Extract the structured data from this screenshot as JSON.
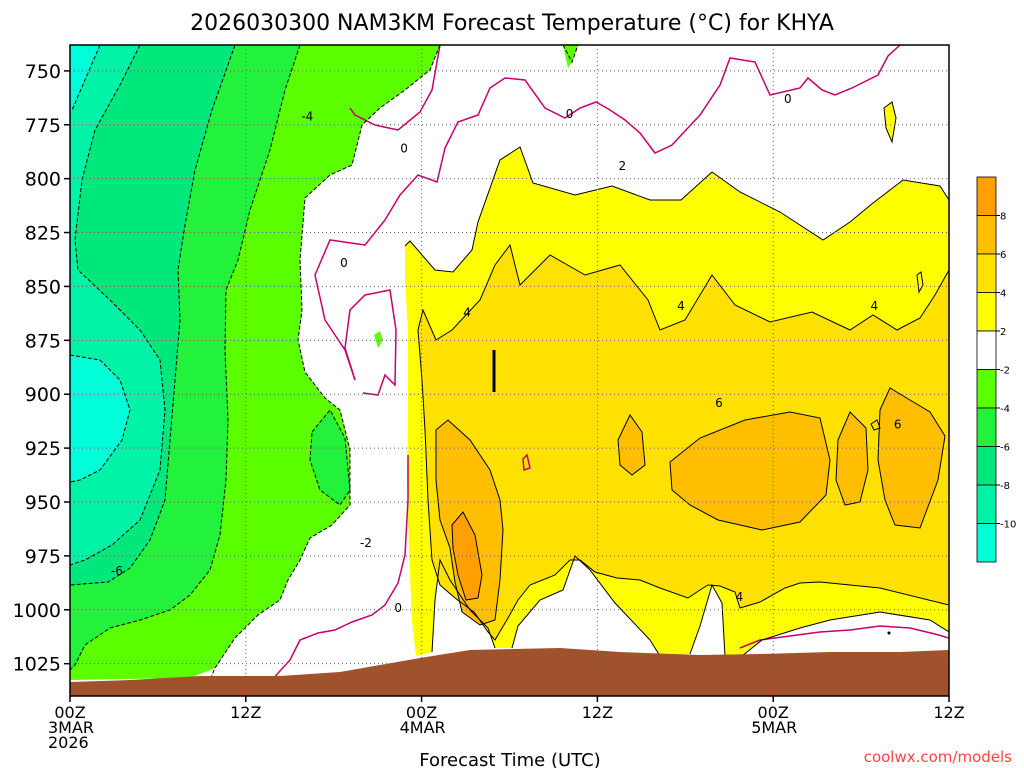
{
  "chart_data": {
    "type": "heatmap",
    "title": "2026030300 NAM3KM Forecast Temperature (°C) for KHYA",
    "xlabel": "Forecast Time (UTC)",
    "ylabel": "",
    "x_range_hours": [
      0,
      60
    ],
    "y_range_hpa": [
      1040,
      738
    ],
    "y_axis": "pressure, inverted (surface at bottom)",
    "grid": "dotted",
    "x_ticks": [
      {
        "hour": 0,
        "lines": [
          "00Z",
          "3MAR",
          "2026"
        ]
      },
      {
        "hour": 12,
        "lines": [
          "12Z"
        ]
      },
      {
        "hour": 24,
        "lines": [
          "00Z",
          "4MAR"
        ]
      },
      {
        "hour": 36,
        "lines": [
          "12Z"
        ]
      },
      {
        "hour": 48,
        "lines": [
          "00Z",
          "5MAR"
        ]
      },
      {
        "hour": 60,
        "lines": [
          "12Z"
        ]
      }
    ],
    "y_ticks": [
      750,
      775,
      800,
      825,
      850,
      875,
      900,
      925,
      950,
      975,
      1000,
      1025
    ],
    "colorbar": {
      "bins": [
        {
          "from": -12,
          "to": -10,
          "color": "#00ffd9"
        },
        {
          "from": -10,
          "to": -8,
          "color": "#00f2a6"
        },
        {
          "from": -8,
          "to": -6,
          "color": "#00e87c"
        },
        {
          "from": -6,
          "to": -4,
          "color": "#22f23c"
        },
        {
          "from": -4,
          "to": -2,
          "color": "#5bff00"
        },
        {
          "from": -2,
          "to": 2,
          "color": "#ffffff"
        },
        {
          "from": 2,
          "to": 4,
          "color": "#ffff00"
        },
        {
          "from": 4,
          "to": 6,
          "color": "#ffe100"
        },
        {
          "from": 6,
          "to": 8,
          "color": "#ffbf00"
        },
        {
          "from": 8,
          "to": 10,
          "color": "#ff9f00"
        }
      ],
      "tick_labels": [
        "-10",
        "-8",
        "-6",
        "-4",
        "-2",
        "2",
        "4",
        "6",
        "8"
      ]
    },
    "contour_labels": [
      {
        "text": "-4",
        "hour": 16.2,
        "p": 772
      },
      {
        "text": "-6",
        "hour": 3.2,
        "p": 983
      },
      {
        "text": "-2",
        "hour": 20.2,
        "p": 970
      },
      {
        "text": "0",
        "hour": 22.4,
        "p": 1000
      },
      {
        "text": "0",
        "hour": 18.7,
        "p": 840
      },
      {
        "text": "0",
        "hour": 22.8,
        "p": 787
      },
      {
        "text": "0",
        "hour": 34.1,
        "p": 771
      },
      {
        "text": "0",
        "hour": 49.0,
        "p": 764
      },
      {
        "text": "2",
        "hour": 37.7,
        "p": 795
      },
      {
        "text": "4",
        "hour": 27.1,
        "p": 863
      },
      {
        "text": "4",
        "hour": 41.7,
        "p": 860
      },
      {
        "text": "4",
        "hour": 54.9,
        "p": 860
      },
      {
        "text": "4",
        "hour": 45.7,
        "p": 995
      },
      {
        "text": "6",
        "hour": 44.3,
        "p": 905
      },
      {
        "text": "6",
        "hour": 56.5,
        "p": 915
      }
    ],
    "terrain_color": "#a0522d",
    "attribution": "coolwx.com/models"
  }
}
